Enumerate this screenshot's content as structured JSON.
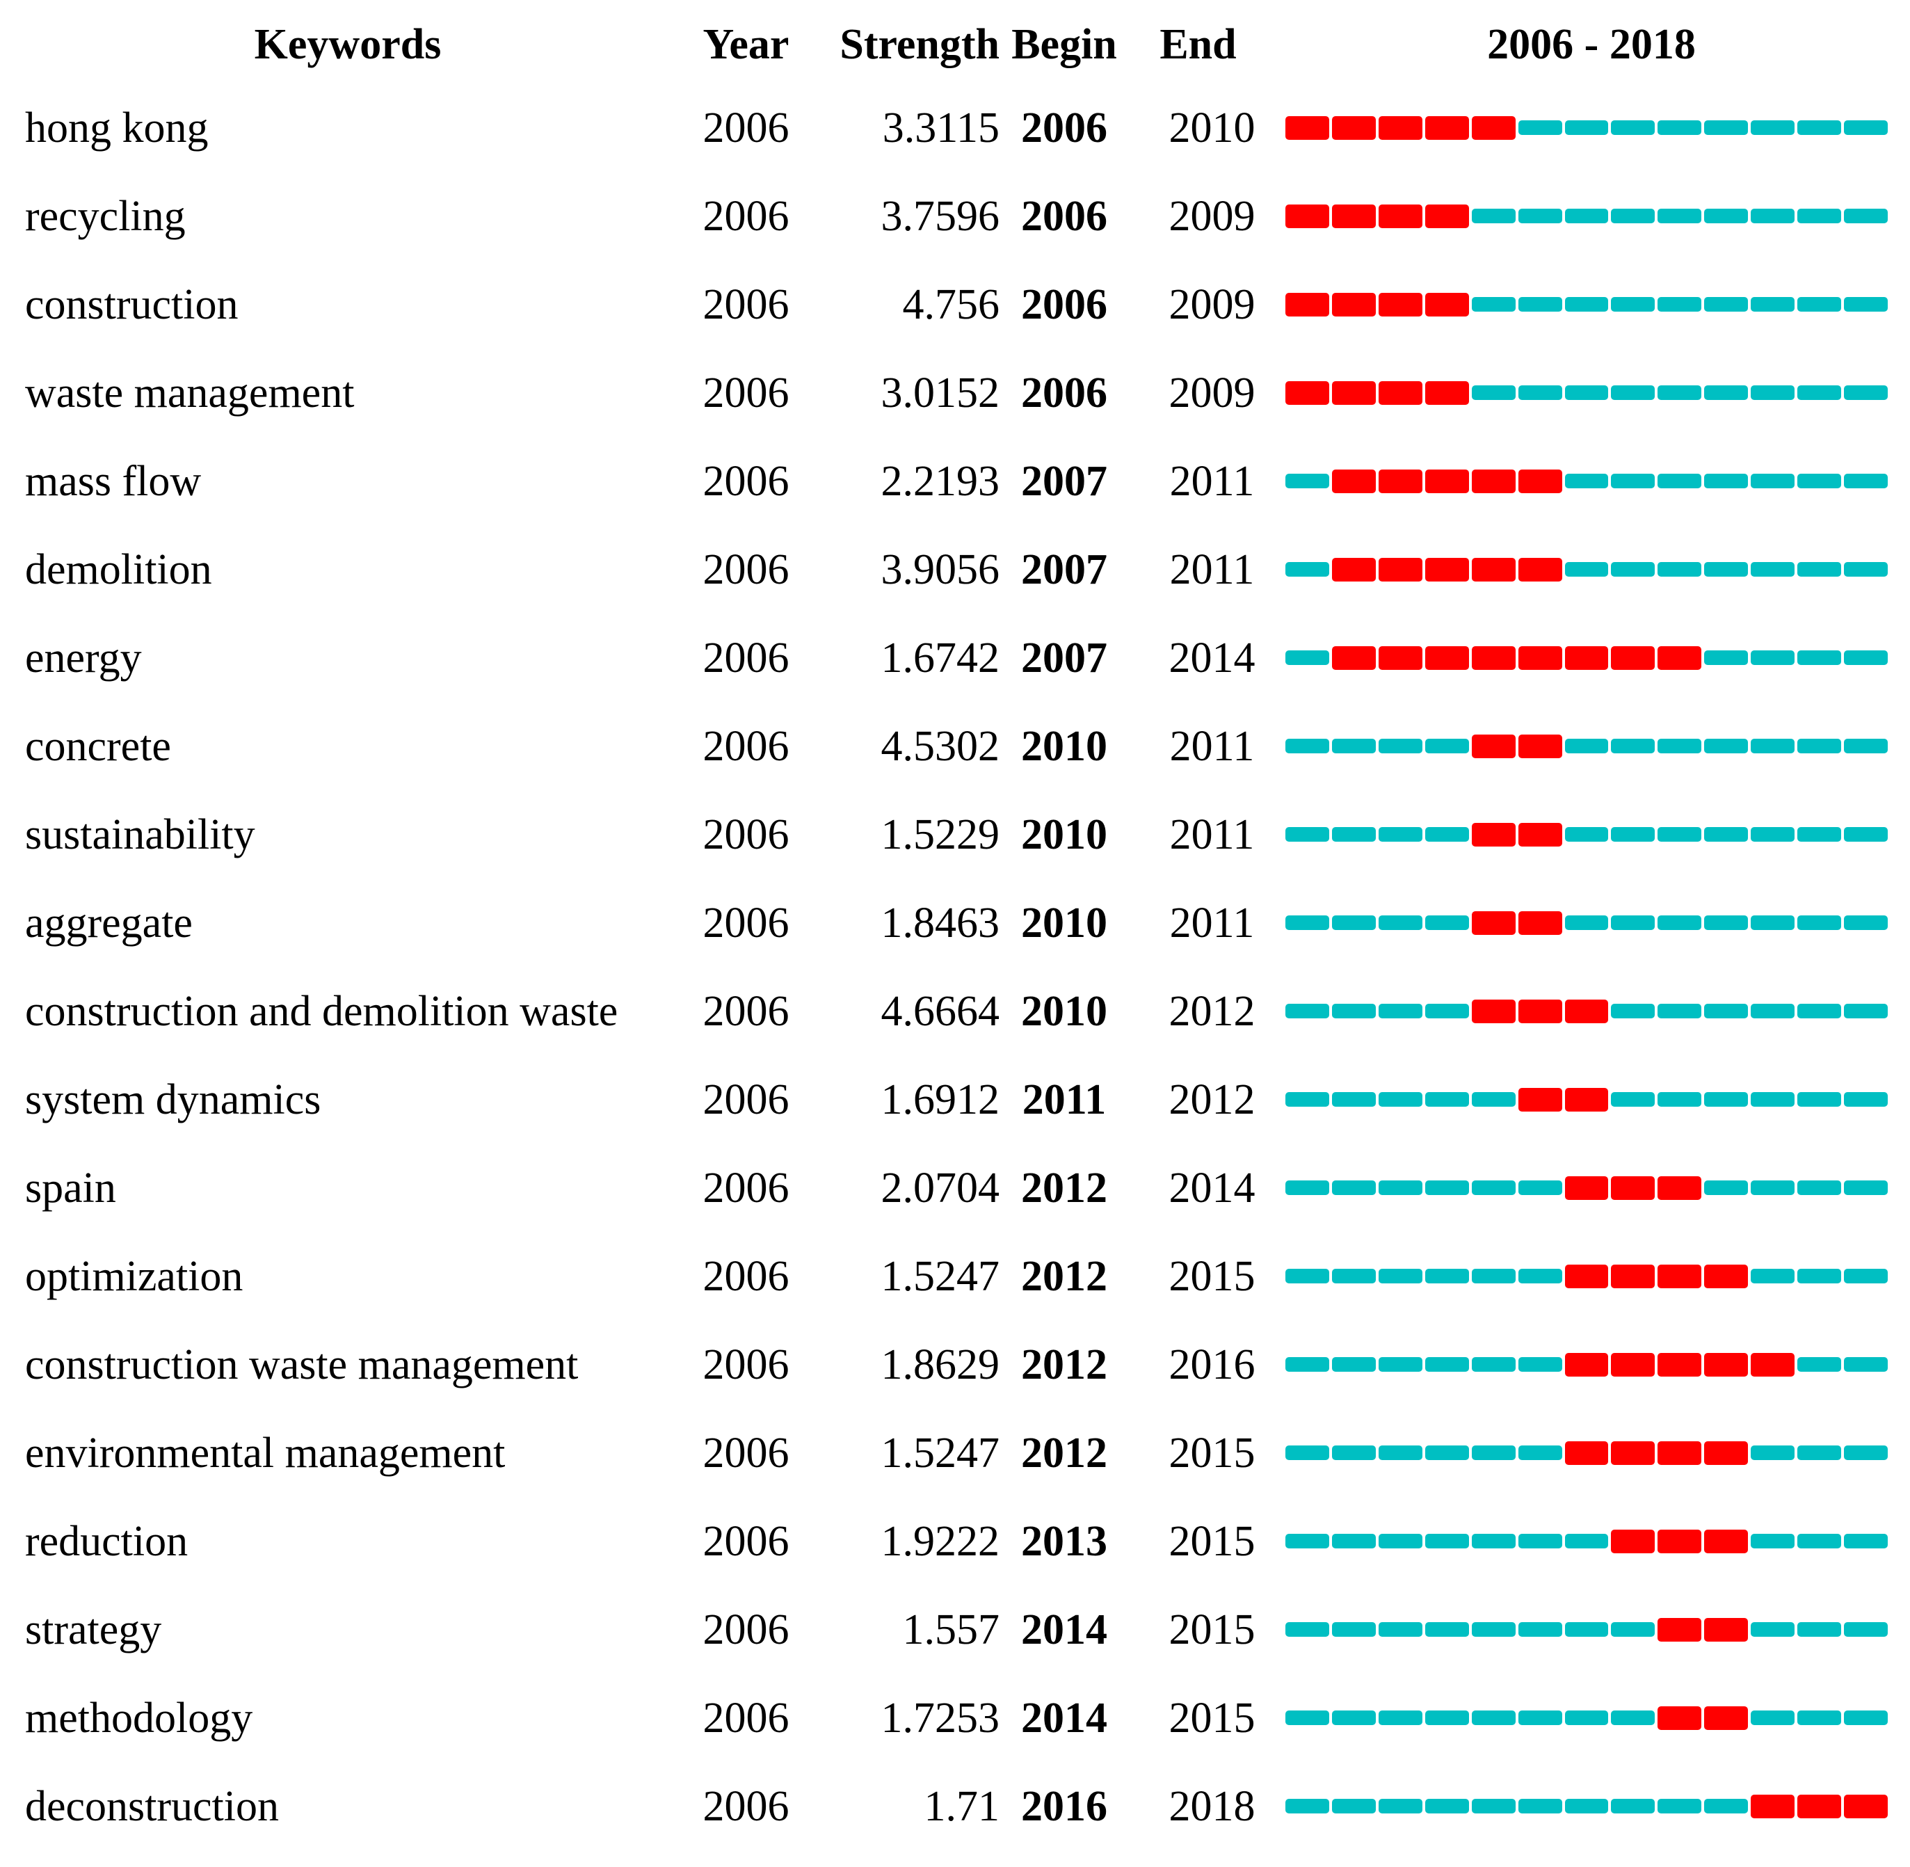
{
  "chart_data": {
    "type": "table",
    "columns": {
      "keywords": "Keywords",
      "year": "Year",
      "strength": "Strength",
      "begin": "Begin",
      "end": "End",
      "timeline": "2006 - 2018"
    },
    "timeline": {
      "start_year": 2006,
      "end_year": 2018
    },
    "colors": {
      "burst": "#FF0000",
      "baseline": "#00BFC2"
    },
    "legend": {
      "burst_segment_meaning": "years between Begin and End (burst period)",
      "baseline_segment_meaning": "years outside burst period"
    },
    "rows": [
      {
        "keyword": "hong kong",
        "year": "2006",
        "strength": "3.3115",
        "begin": 2006,
        "end": 2010
      },
      {
        "keyword": "recycling",
        "year": "2006",
        "strength": "3.7596",
        "begin": 2006,
        "end": 2009
      },
      {
        "keyword": "construction",
        "year": "2006",
        "strength": "4.756",
        "begin": 2006,
        "end": 2009
      },
      {
        "keyword": "waste management",
        "year": "2006",
        "strength": "3.0152",
        "begin": 2006,
        "end": 2009
      },
      {
        "keyword": "mass flow",
        "year": "2006",
        "strength": "2.2193",
        "begin": 2007,
        "end": 2011
      },
      {
        "keyword": "demolition",
        "year": "2006",
        "strength": "3.9056",
        "begin": 2007,
        "end": 2011
      },
      {
        "keyword": "energy",
        "year": "2006",
        "strength": "1.6742",
        "begin": 2007,
        "end": 2014
      },
      {
        "keyword": "concrete",
        "year": "2006",
        "strength": "4.5302",
        "begin": 2010,
        "end": 2011
      },
      {
        "keyword": "sustainability",
        "year": "2006",
        "strength": "1.5229",
        "begin": 2010,
        "end": 2011
      },
      {
        "keyword": "aggregate",
        "year": "2006",
        "strength": "1.8463",
        "begin": 2010,
        "end": 2011
      },
      {
        "keyword": "construction and demolition waste",
        "year": "2006",
        "strength": "4.6664",
        "begin": 2010,
        "end": 2012
      },
      {
        "keyword": "system dynamics",
        "year": "2006",
        "strength": "1.6912",
        "begin": 2011,
        "end": 2012
      },
      {
        "keyword": "spain",
        "year": "2006",
        "strength": "2.0704",
        "begin": 2012,
        "end": 2014
      },
      {
        "keyword": "optimization",
        "year": "2006",
        "strength": "1.5247",
        "begin": 2012,
        "end": 2015
      },
      {
        "keyword": "construction waste management",
        "year": "2006",
        "strength": "1.8629",
        "begin": 2012,
        "end": 2016
      },
      {
        "keyword": "environmental management",
        "year": "2006",
        "strength": "1.5247",
        "begin": 2012,
        "end": 2015
      },
      {
        "keyword": "reduction",
        "year": "2006",
        "strength": "1.9222",
        "begin": 2013,
        "end": 2015
      },
      {
        "keyword": "strategy",
        "year": "2006",
        "strength": "1.557",
        "begin": 2014,
        "end": 2015
      },
      {
        "keyword": "methodology",
        "year": "2006",
        "strength": "1.7253",
        "begin": 2014,
        "end": 2015
      },
      {
        "keyword": "deconstruction",
        "year": "2006",
        "strength": "1.71",
        "begin": 2016,
        "end": 2018
      }
    ]
  }
}
